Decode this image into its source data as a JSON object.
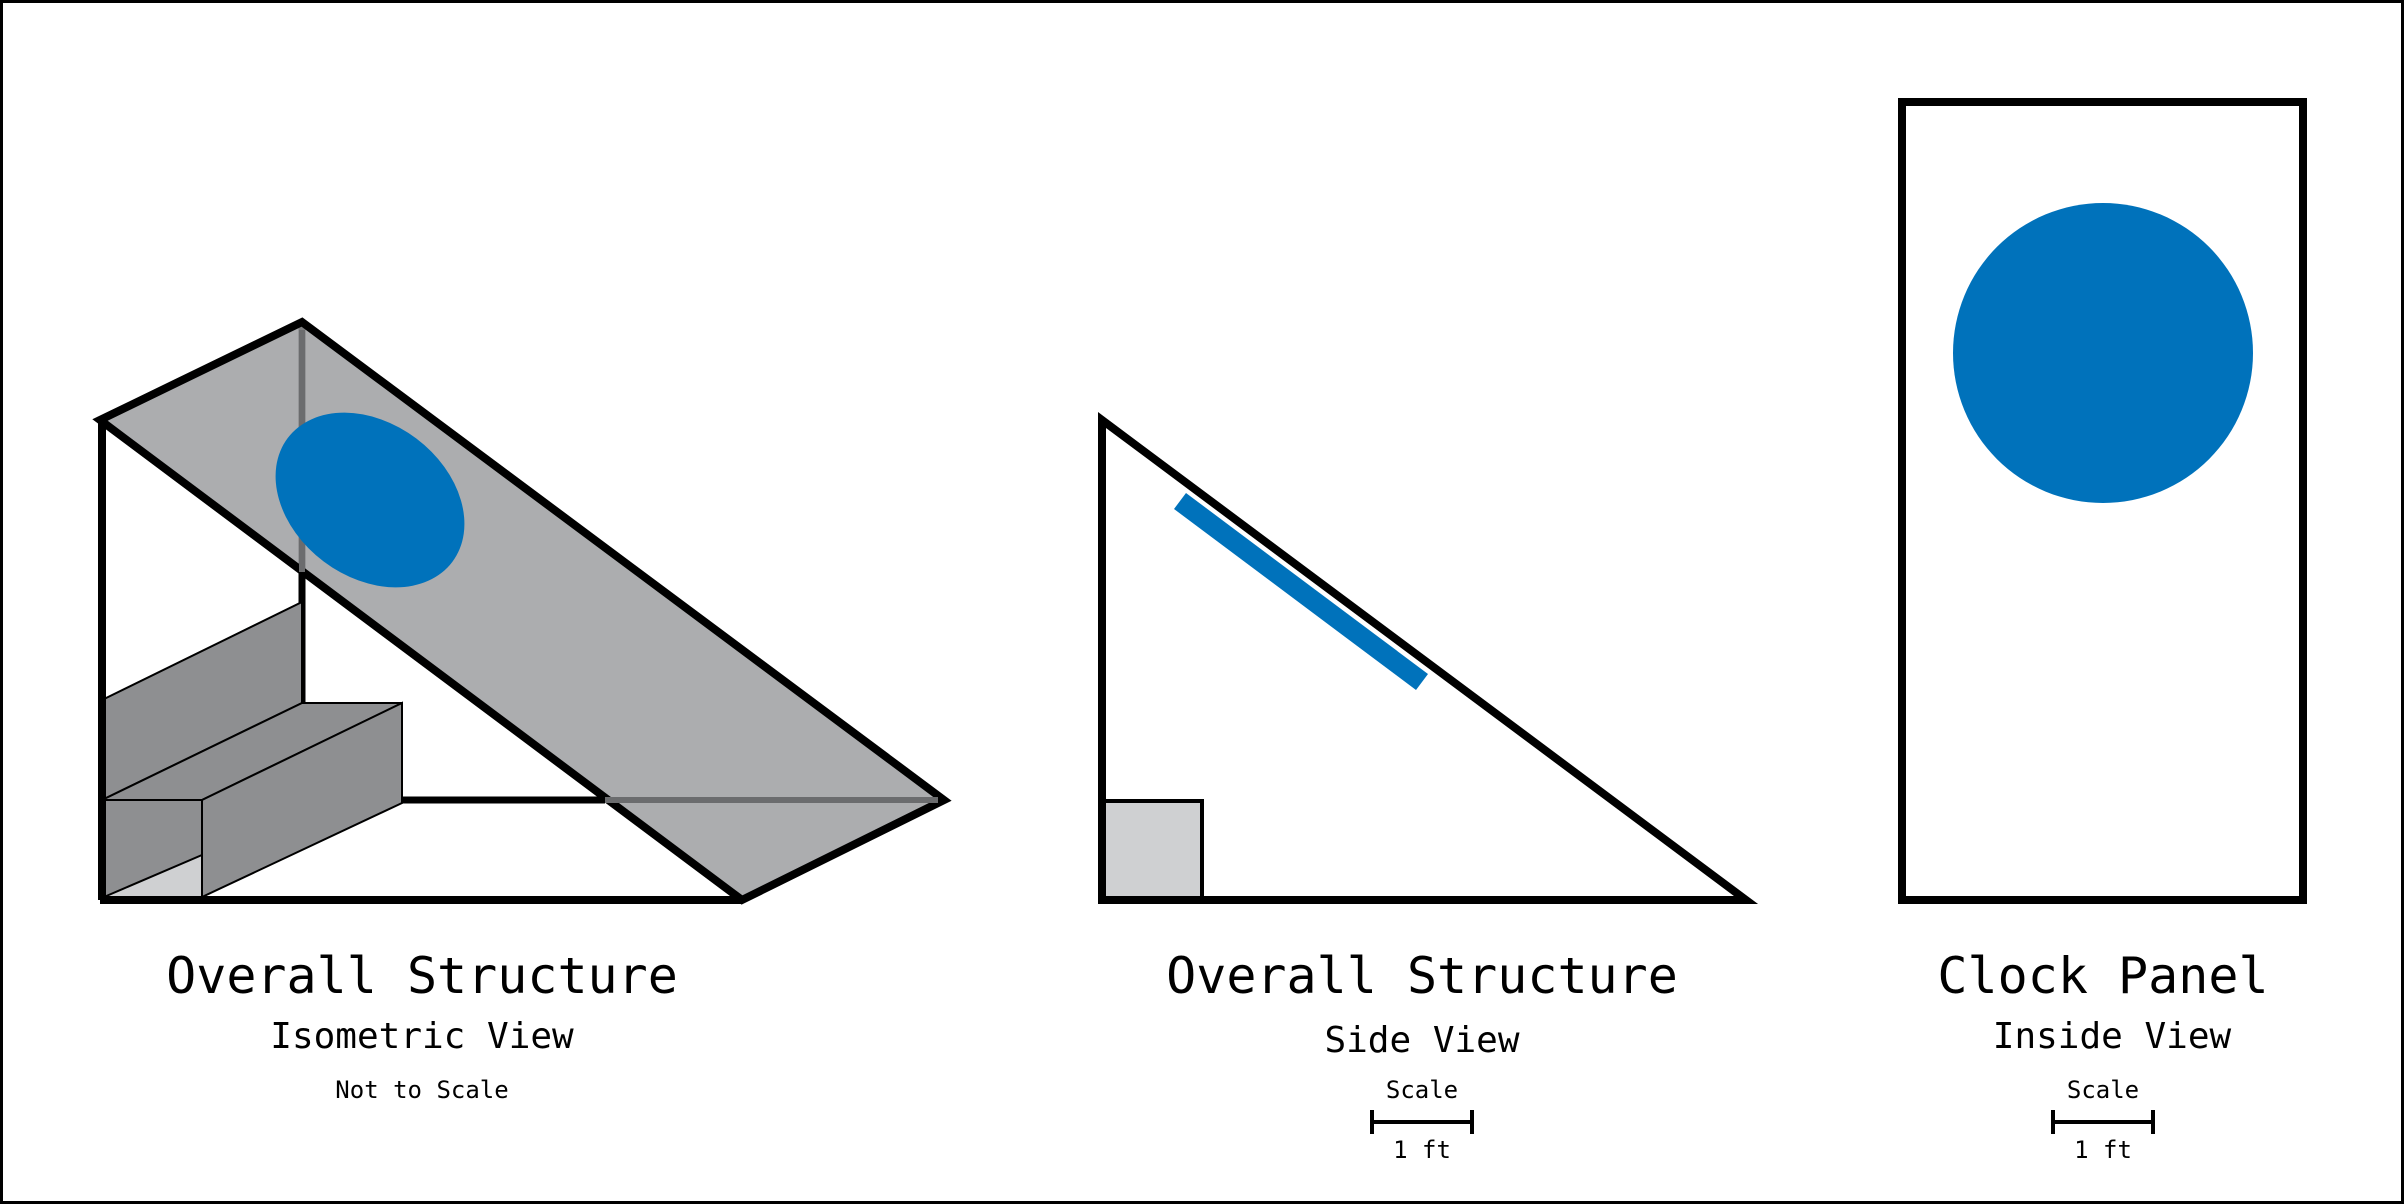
{
  "colors": {
    "outline": "#000000",
    "panel_gray": "#a8a9ab",
    "dark_gray": "#8e8f91",
    "light_gray": "#cfd0d2",
    "clock_blue": "#0072bb",
    "background": "#ffffff"
  },
  "isometric": {
    "title": "Overall Structure",
    "subtitle": "Isometric View",
    "note": "Not to Scale"
  },
  "side": {
    "title": "Overall Structure",
    "subtitle": "Side View",
    "scale_label": "Scale",
    "scale_value": "1 ft"
  },
  "panel": {
    "title": "Clock Panel",
    "subtitle": "Inside View",
    "scale_label": "Scale",
    "scale_value": "1 ft"
  }
}
